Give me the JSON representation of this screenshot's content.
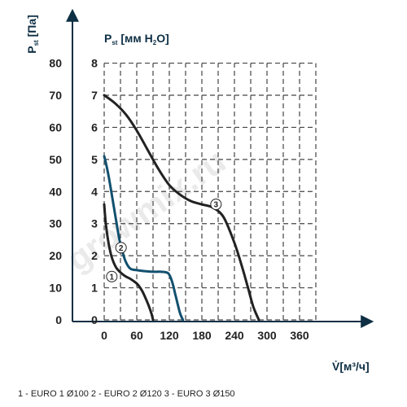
{
  "chart_data": {
    "type": "line",
    "y_left_label": {
      "main": "P",
      "sub": "st",
      "unit": "[Па]"
    },
    "y_right_label": {
      "main": "P",
      "sub": "st",
      "unit": "[мм H",
      "unit_sub": "2",
      "unit_end": "O]"
    },
    "x_label": "V̇[м³/ч]",
    "x_ticks": [
      0,
      60,
      120,
      180,
      240,
      300,
      360
    ],
    "y_ticks_pa": [
      0,
      10,
      20,
      30,
      40,
      50,
      60,
      70,
      80
    ],
    "y_ticks_mm": [
      0,
      1,
      2,
      3,
      4,
      5,
      6,
      7,
      8
    ],
    "xlim": [
      0,
      390
    ],
    "ylim_pa": [
      0,
      80
    ],
    "grid": true,
    "series": [
      {
        "name": "1",
        "color": "#222222",
        "label_at": {
          "x": 14,
          "y": 13.5
        },
        "x": [
          0,
          3,
          8,
          14,
          22,
          32,
          40,
          48,
          55,
          62,
          70,
          77,
          83,
          87,
          90
        ],
        "y": [
          36,
          30,
          24,
          19.5,
          16.3,
          14.5,
          13.5,
          12.8,
          12,
          11,
          9,
          6.5,
          4,
          2,
          0
        ]
      },
      {
        "name": "2",
        "color": "#12506e",
        "label_at": {
          "x": 31,
          "y": 22.5
        },
        "x": [
          0,
          3,
          8,
          13,
          18,
          23,
          28,
          34,
          40,
          48,
          60,
          75,
          90,
          105,
          118,
          125,
          131,
          136,
          140,
          145
        ],
        "y": [
          51,
          49,
          45,
          40,
          35,
          30,
          25,
          21,
          18,
          16,
          15.5,
          15.2,
          15,
          15,
          14.5,
          12,
          8,
          4.5,
          2,
          0
        ]
      },
      {
        "name": "3",
        "color": "#222222",
        "label_at": {
          "x": 206,
          "y": 36
        },
        "x": [
          0,
          20,
          40,
          60,
          80,
          100,
          120,
          140,
          160,
          180,
          200,
          220,
          240,
          255,
          265,
          275,
          285
        ],
        "y": [
          70,
          67.5,
          64,
          59,
          53,
          47,
          42,
          39,
          37,
          36,
          35,
          32,
          24,
          16,
          10,
          4,
          0
        ]
      }
    ]
  },
  "legend_text": "1 - EURO 1 Ø100   2 - EURO 2 Ø120   3 - EURO 3 Ø150",
  "watermark": "growmix.ru"
}
